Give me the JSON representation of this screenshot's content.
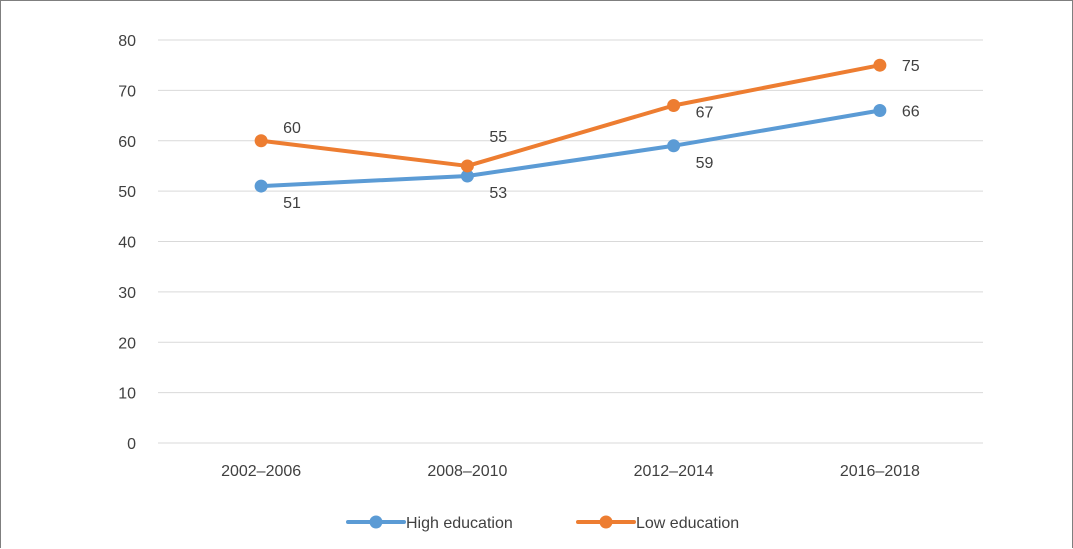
{
  "chart_data": {
    "type": "line",
    "categories": [
      "2002–2006",
      "2008–2010",
      "2012–2014",
      "2016–2018"
    ],
    "series": [
      {
        "name": "High education",
        "values": [
          51,
          53,
          59,
          66
        ],
        "labels": [
          "51",
          "53",
          "59",
          "66"
        ],
        "color": "#5b9bd5"
      },
      {
        "name": "Low education",
        "values": [
          60,
          55,
          67,
          75
        ],
        "labels": [
          "60",
          "55",
          "67",
          "75"
        ],
        "color": "#ed7d31"
      }
    ],
    "yticks": [
      "0",
      "10",
      "20",
      "30",
      "40",
      "50",
      "60",
      "70",
      "80"
    ],
    "ylim": [
      0,
      80
    ],
    "grid": true,
    "legend": "bottom",
    "gridColor": "#d9d9d9"
  }
}
